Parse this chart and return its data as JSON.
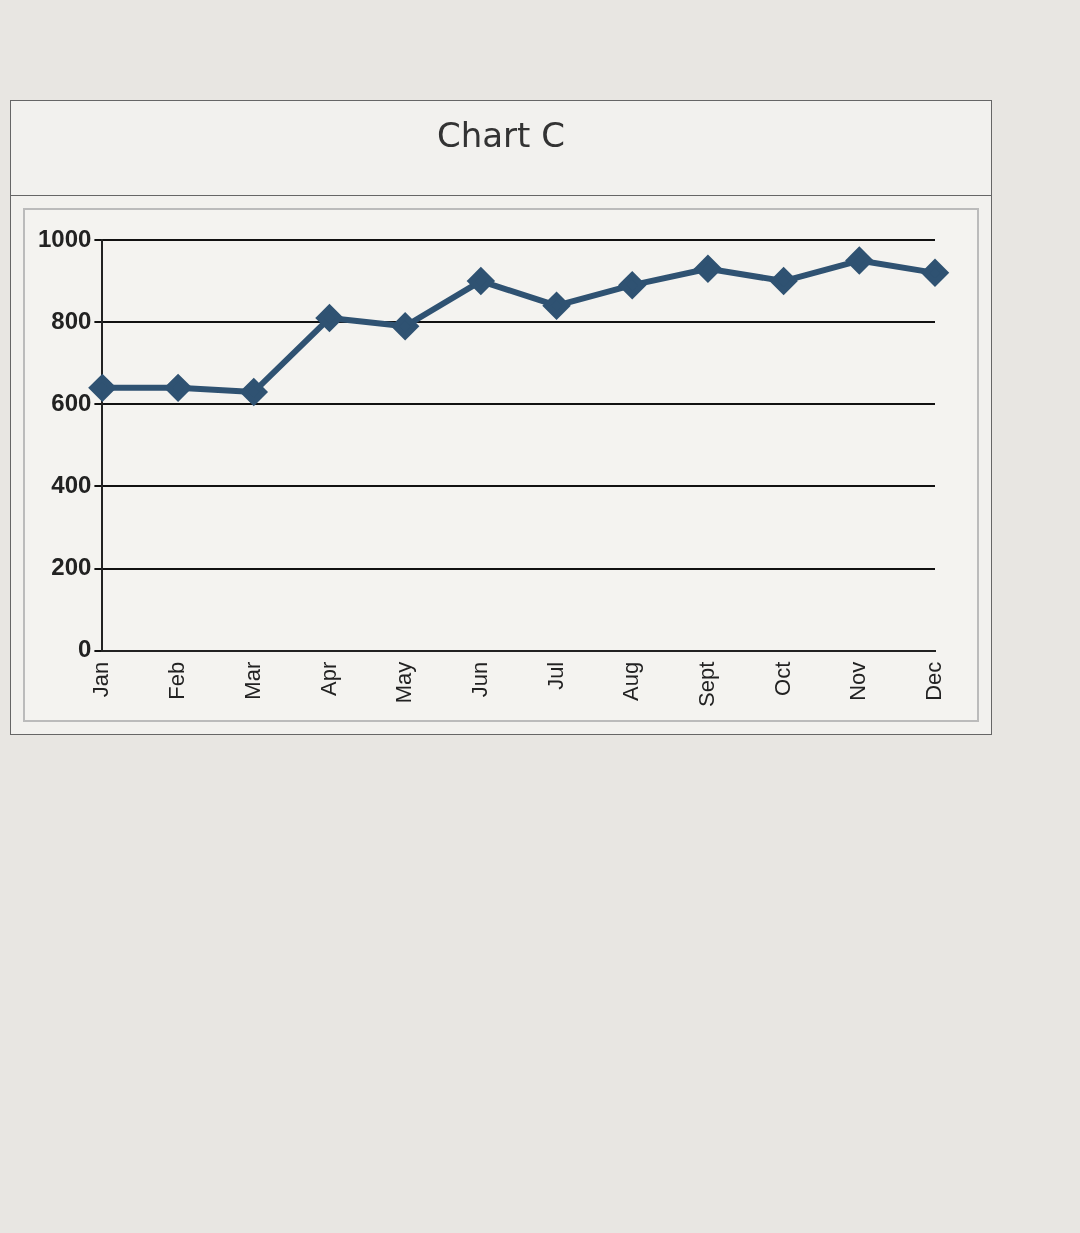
{
  "chart_data": {
    "type": "line",
    "title": "Chart C",
    "categories": [
      "Jan",
      "Feb",
      "Mar",
      "Apr",
      "May",
      "Jun",
      "Jul",
      "Aug",
      "Sept",
      "Oct",
      "Nov",
      "Dec"
    ],
    "series": [
      {
        "color": "#2f5272",
        "values": [
          640,
          640,
          630,
          810,
          790,
          900,
          840,
          890,
          930,
          900,
          950,
          920
        ]
      }
    ],
    "ylim": [
      0,
      1000
    ],
    "yticks": [
      0,
      200,
      400,
      600,
      800,
      1000
    ],
    "grid": "y",
    "marker": "diamond",
    "line_style": "solid",
    "legend": false
  }
}
